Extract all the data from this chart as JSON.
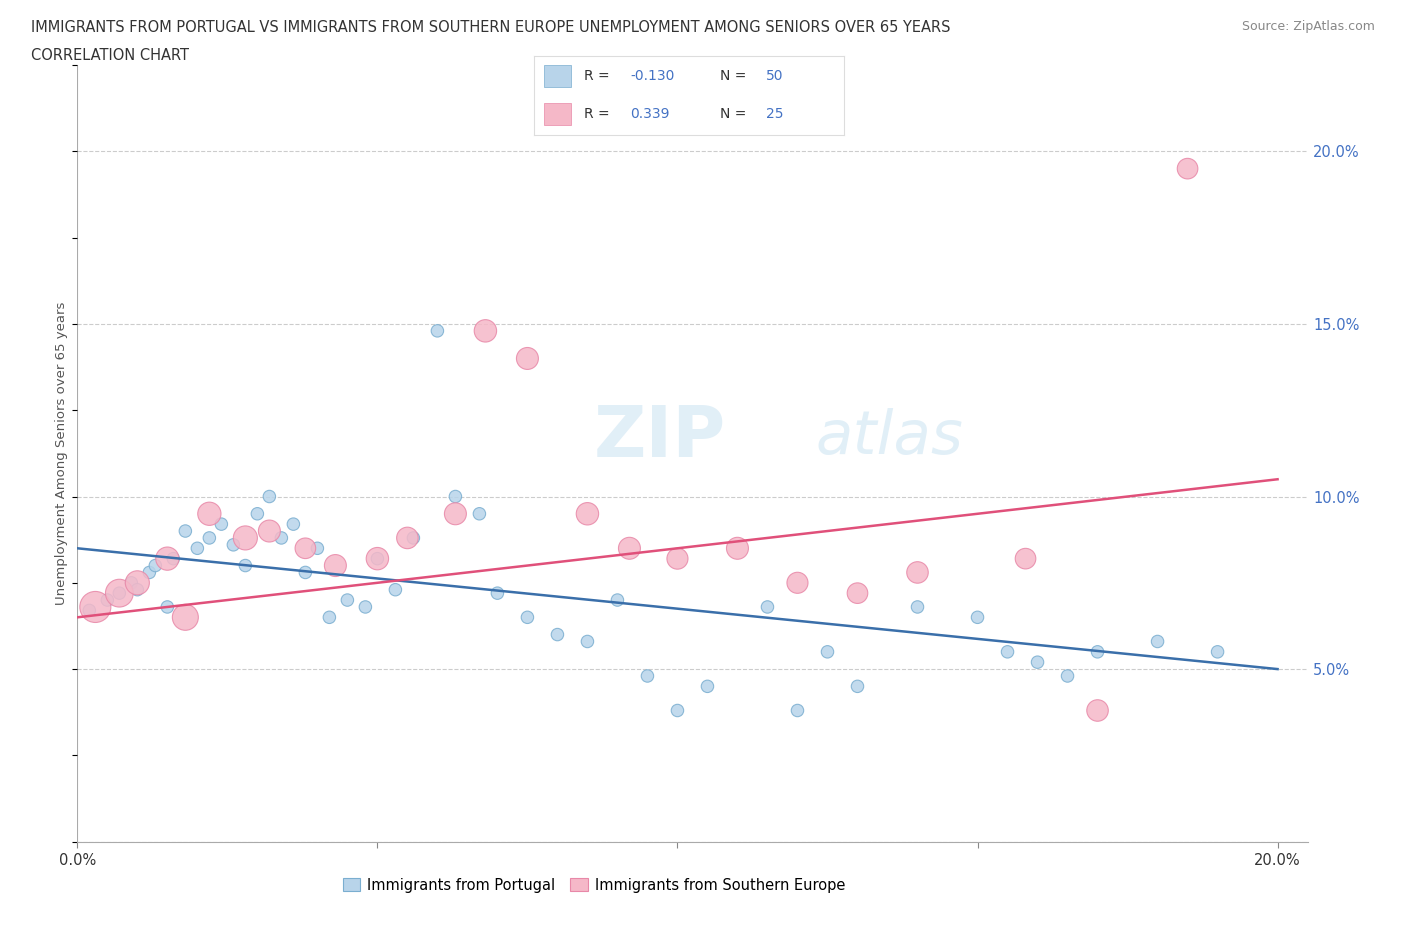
{
  "title_line1": "IMMIGRANTS FROM PORTUGAL VS IMMIGRANTS FROM SOUTHERN EUROPE UNEMPLOYMENT AMONG SENIORS OVER 65 YEARS",
  "title_line2": "CORRELATION CHART",
  "source": "Source: ZipAtlas.com",
  "ylabel": "Unemployment Among Seniors over 65 years",
  "xlim": [
    0.0,
    0.205
  ],
  "ylim": [
    0.0,
    0.225
  ],
  "yticks": [
    0.0,
    0.05,
    0.1,
    0.15,
    0.2
  ],
  "xticks": [
    0.0,
    0.05,
    0.1,
    0.15,
    0.2
  ],
  "watermark": "ZIPatlas",
  "legend_labels": [
    "Immigrants from Portugal",
    "Immigrants from Southern Europe"
  ],
  "r_portugal": -0.13,
  "n_portugal": 50,
  "r_southern": 0.339,
  "n_southern": 25,
  "color_portugal_fill": "#b8d4ea",
  "color_portugal_edge": "#7aaed0",
  "color_southern_fill": "#f5b8c8",
  "color_southern_edge": "#e888a8",
  "line_color_portugal": "#3a6faa",
  "line_color_southern": "#e0507a",
  "portugal_x": [
    0.002,
    0.005,
    0.007,
    0.009,
    0.01,
    0.012,
    0.013,
    0.015,
    0.016,
    0.018,
    0.02,
    0.022,
    0.024,
    0.026,
    0.028,
    0.03,
    0.032,
    0.034,
    0.036,
    0.038,
    0.04,
    0.042,
    0.045,
    0.048,
    0.05,
    0.053,
    0.056,
    0.06,
    0.063,
    0.067,
    0.07,
    0.075,
    0.08,
    0.085,
    0.09,
    0.095,
    0.1,
    0.105,
    0.115,
    0.12,
    0.125,
    0.13,
    0.14,
    0.15,
    0.155,
    0.16,
    0.165,
    0.17,
    0.18,
    0.19
  ],
  "portugal_y": [
    0.067,
    0.07,
    0.072,
    0.075,
    0.073,
    0.078,
    0.08,
    0.068,
    0.082,
    0.09,
    0.085,
    0.088,
    0.092,
    0.086,
    0.08,
    0.095,
    0.1,
    0.088,
    0.092,
    0.078,
    0.085,
    0.065,
    0.07,
    0.068,
    0.082,
    0.073,
    0.088,
    0.148,
    0.1,
    0.095,
    0.072,
    0.065,
    0.06,
    0.058,
    0.07,
    0.048,
    0.038,
    0.045,
    0.068,
    0.038,
    0.055,
    0.045,
    0.068,
    0.065,
    0.055,
    0.052,
    0.048,
    0.055,
    0.058,
    0.055
  ],
  "portugal_sizes": [
    80,
    80,
    80,
    80,
    80,
    80,
    80,
    80,
    80,
    80,
    80,
    80,
    80,
    80,
    80,
    80,
    80,
    80,
    80,
    80,
    80,
    80,
    80,
    80,
    80,
    80,
    80,
    80,
    80,
    80,
    80,
    80,
    80,
    80,
    80,
    80,
    80,
    80,
    80,
    80,
    80,
    80,
    80,
    80,
    80,
    80,
    80,
    80,
    80,
    80
  ],
  "southern_x": [
    0.003,
    0.007,
    0.01,
    0.015,
    0.018,
    0.022,
    0.028,
    0.032,
    0.038,
    0.043,
    0.05,
    0.055,
    0.063,
    0.068,
    0.075,
    0.085,
    0.092,
    0.1,
    0.11,
    0.12,
    0.13,
    0.14,
    0.158,
    0.17,
    0.185
  ],
  "southern_y": [
    0.068,
    0.072,
    0.075,
    0.082,
    0.065,
    0.095,
    0.088,
    0.09,
    0.085,
    0.08,
    0.082,
    0.088,
    0.095,
    0.148,
    0.14,
    0.095,
    0.085,
    0.082,
    0.085,
    0.075,
    0.072,
    0.078,
    0.082,
    0.038,
    0.195
  ],
  "southern_sizes": [
    500,
    400,
    300,
    280,
    350,
    280,
    300,
    250,
    220,
    250,
    260,
    240,
    250,
    260,
    250,
    260,
    250,
    230,
    250,
    230,
    220,
    240,
    220,
    240,
    220
  ]
}
